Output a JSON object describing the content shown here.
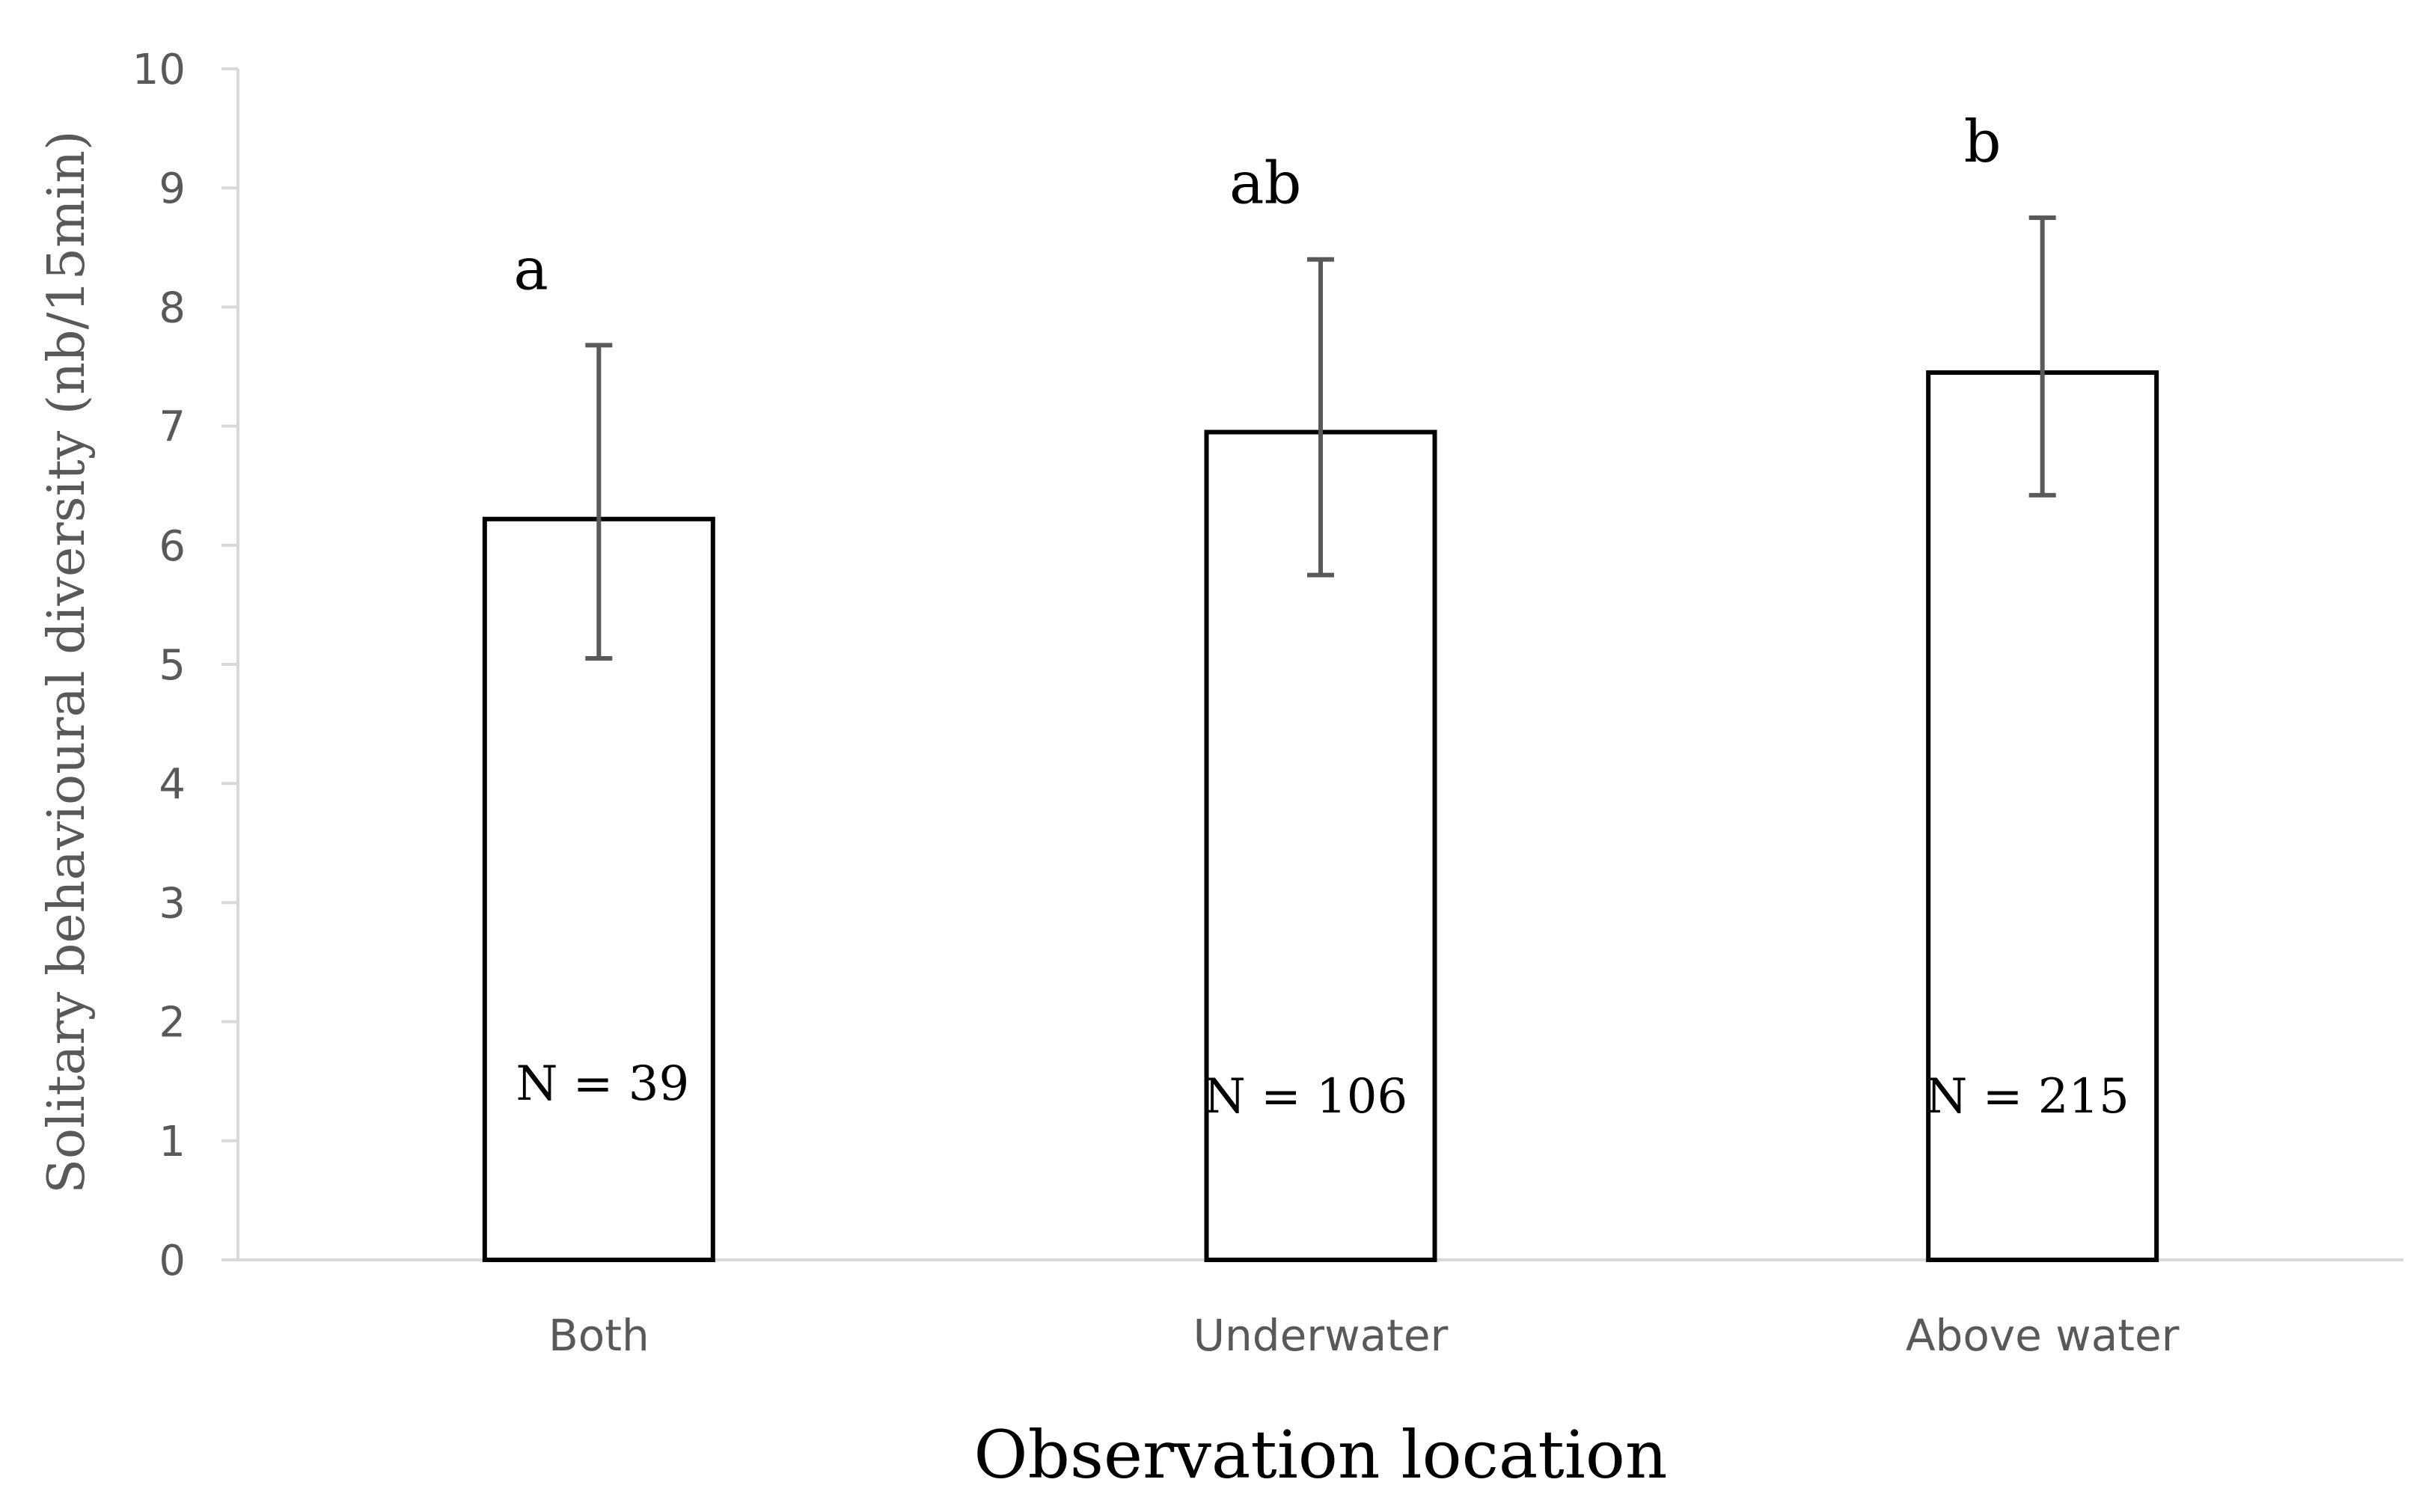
{
  "chart_data": {
    "type": "bar",
    "title": "",
    "xlabel": "Observation location",
    "ylabel": "Solitary behavioural diversity (nb/15min)",
    "ylim": [
      0,
      10
    ],
    "yticks": [
      "0",
      "1",
      "2",
      "3",
      "4",
      "5",
      "6",
      "7",
      "8",
      "9",
      "10"
    ],
    "categories": [
      "Both",
      "Underwater",
      "Above water"
    ],
    "values": [
      6.22,
      6.95,
      7.45
    ],
    "error_low": [
      5.05,
      5.75,
      6.42
    ],
    "error_high": [
      7.68,
      8.4,
      8.75
    ],
    "significance_labels": [
      "a",
      "ab",
      "b"
    ],
    "n_labels": [
      "N = 39",
      "N = 106",
      "N = 215"
    ],
    "grid": false,
    "legend": "none",
    "colors": {
      "bar_fill": "#ffffff",
      "bar_stroke": "#000000",
      "error_bar": "#595959",
      "axis": "#d9d9d9",
      "tick_text": "#595959"
    }
  }
}
